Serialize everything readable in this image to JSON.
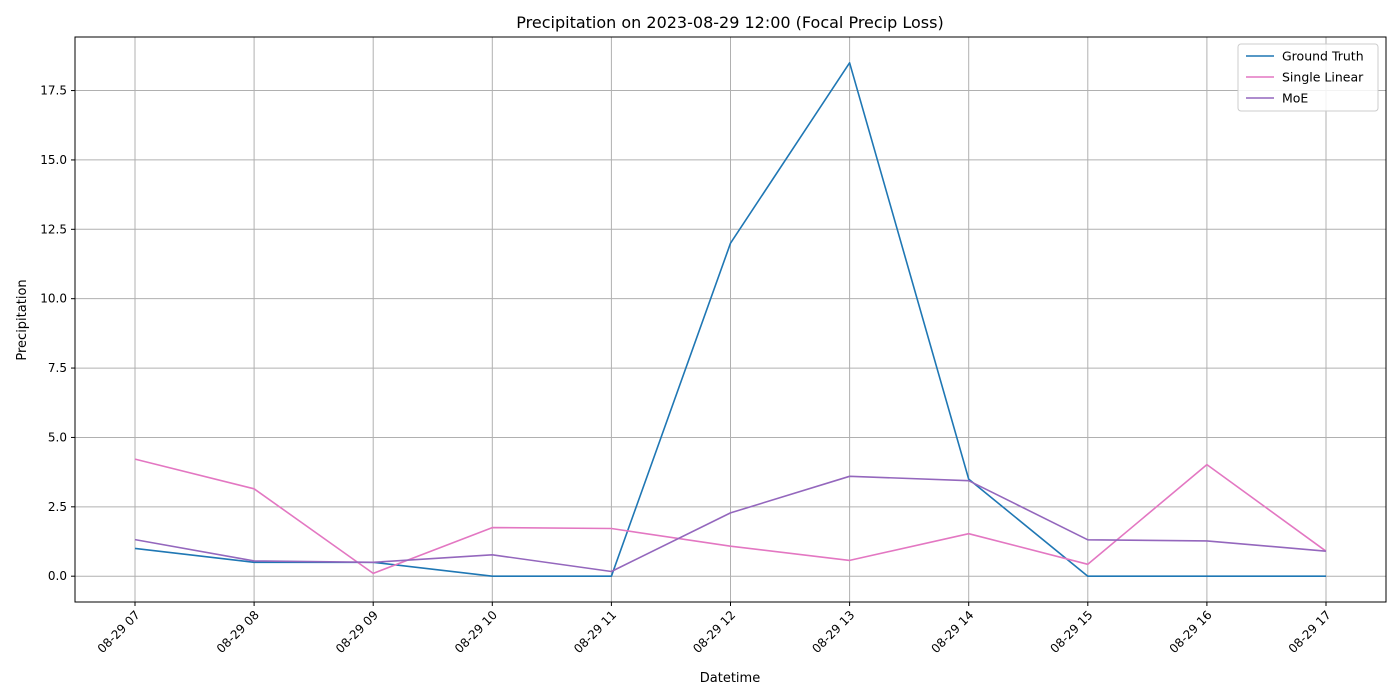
{
  "chart_data": {
    "type": "line",
    "title": "Precipitation on 2023-08-29 12:00 (Focal Precip Loss)",
    "xlabel": "Datetime",
    "ylabel": "Precipitation",
    "categories": [
      "08-29 07",
      "08-29 08",
      "08-29 09",
      "08-29 10",
      "08-29 11",
      "08-29 12",
      "08-29 13",
      "08-29 14",
      "08-29 15",
      "08-29 16",
      "08-29 17"
    ],
    "ylim": [
      -0.93,
      19.43
    ],
    "yticks": [
      "0.0",
      "2.5",
      "5.0",
      "7.5",
      "10.0",
      "12.5",
      "15.0",
      "17.5"
    ],
    "grid": true,
    "legend_position": "top-right",
    "series": [
      {
        "name": "Ground Truth",
        "color": "#1f77b4",
        "values": [
          1.0,
          0.5,
          0.5,
          0.0,
          0.0,
          12.0,
          18.5,
          3.5,
          0.0,
          0.0,
          0.0
        ]
      },
      {
        "name": "Single Linear",
        "color": "#e377c2",
        "values": [
          4.22,
          3.15,
          0.1,
          1.75,
          1.72,
          1.08,
          0.57,
          1.53,
          0.43,
          4.02,
          0.9
        ]
      },
      {
        "name": "MoE",
        "color": "#9467bd",
        "values": [
          1.32,
          0.55,
          0.5,
          0.77,
          0.17,
          2.28,
          3.6,
          3.44,
          1.31,
          1.27,
          0.9
        ]
      }
    ]
  }
}
